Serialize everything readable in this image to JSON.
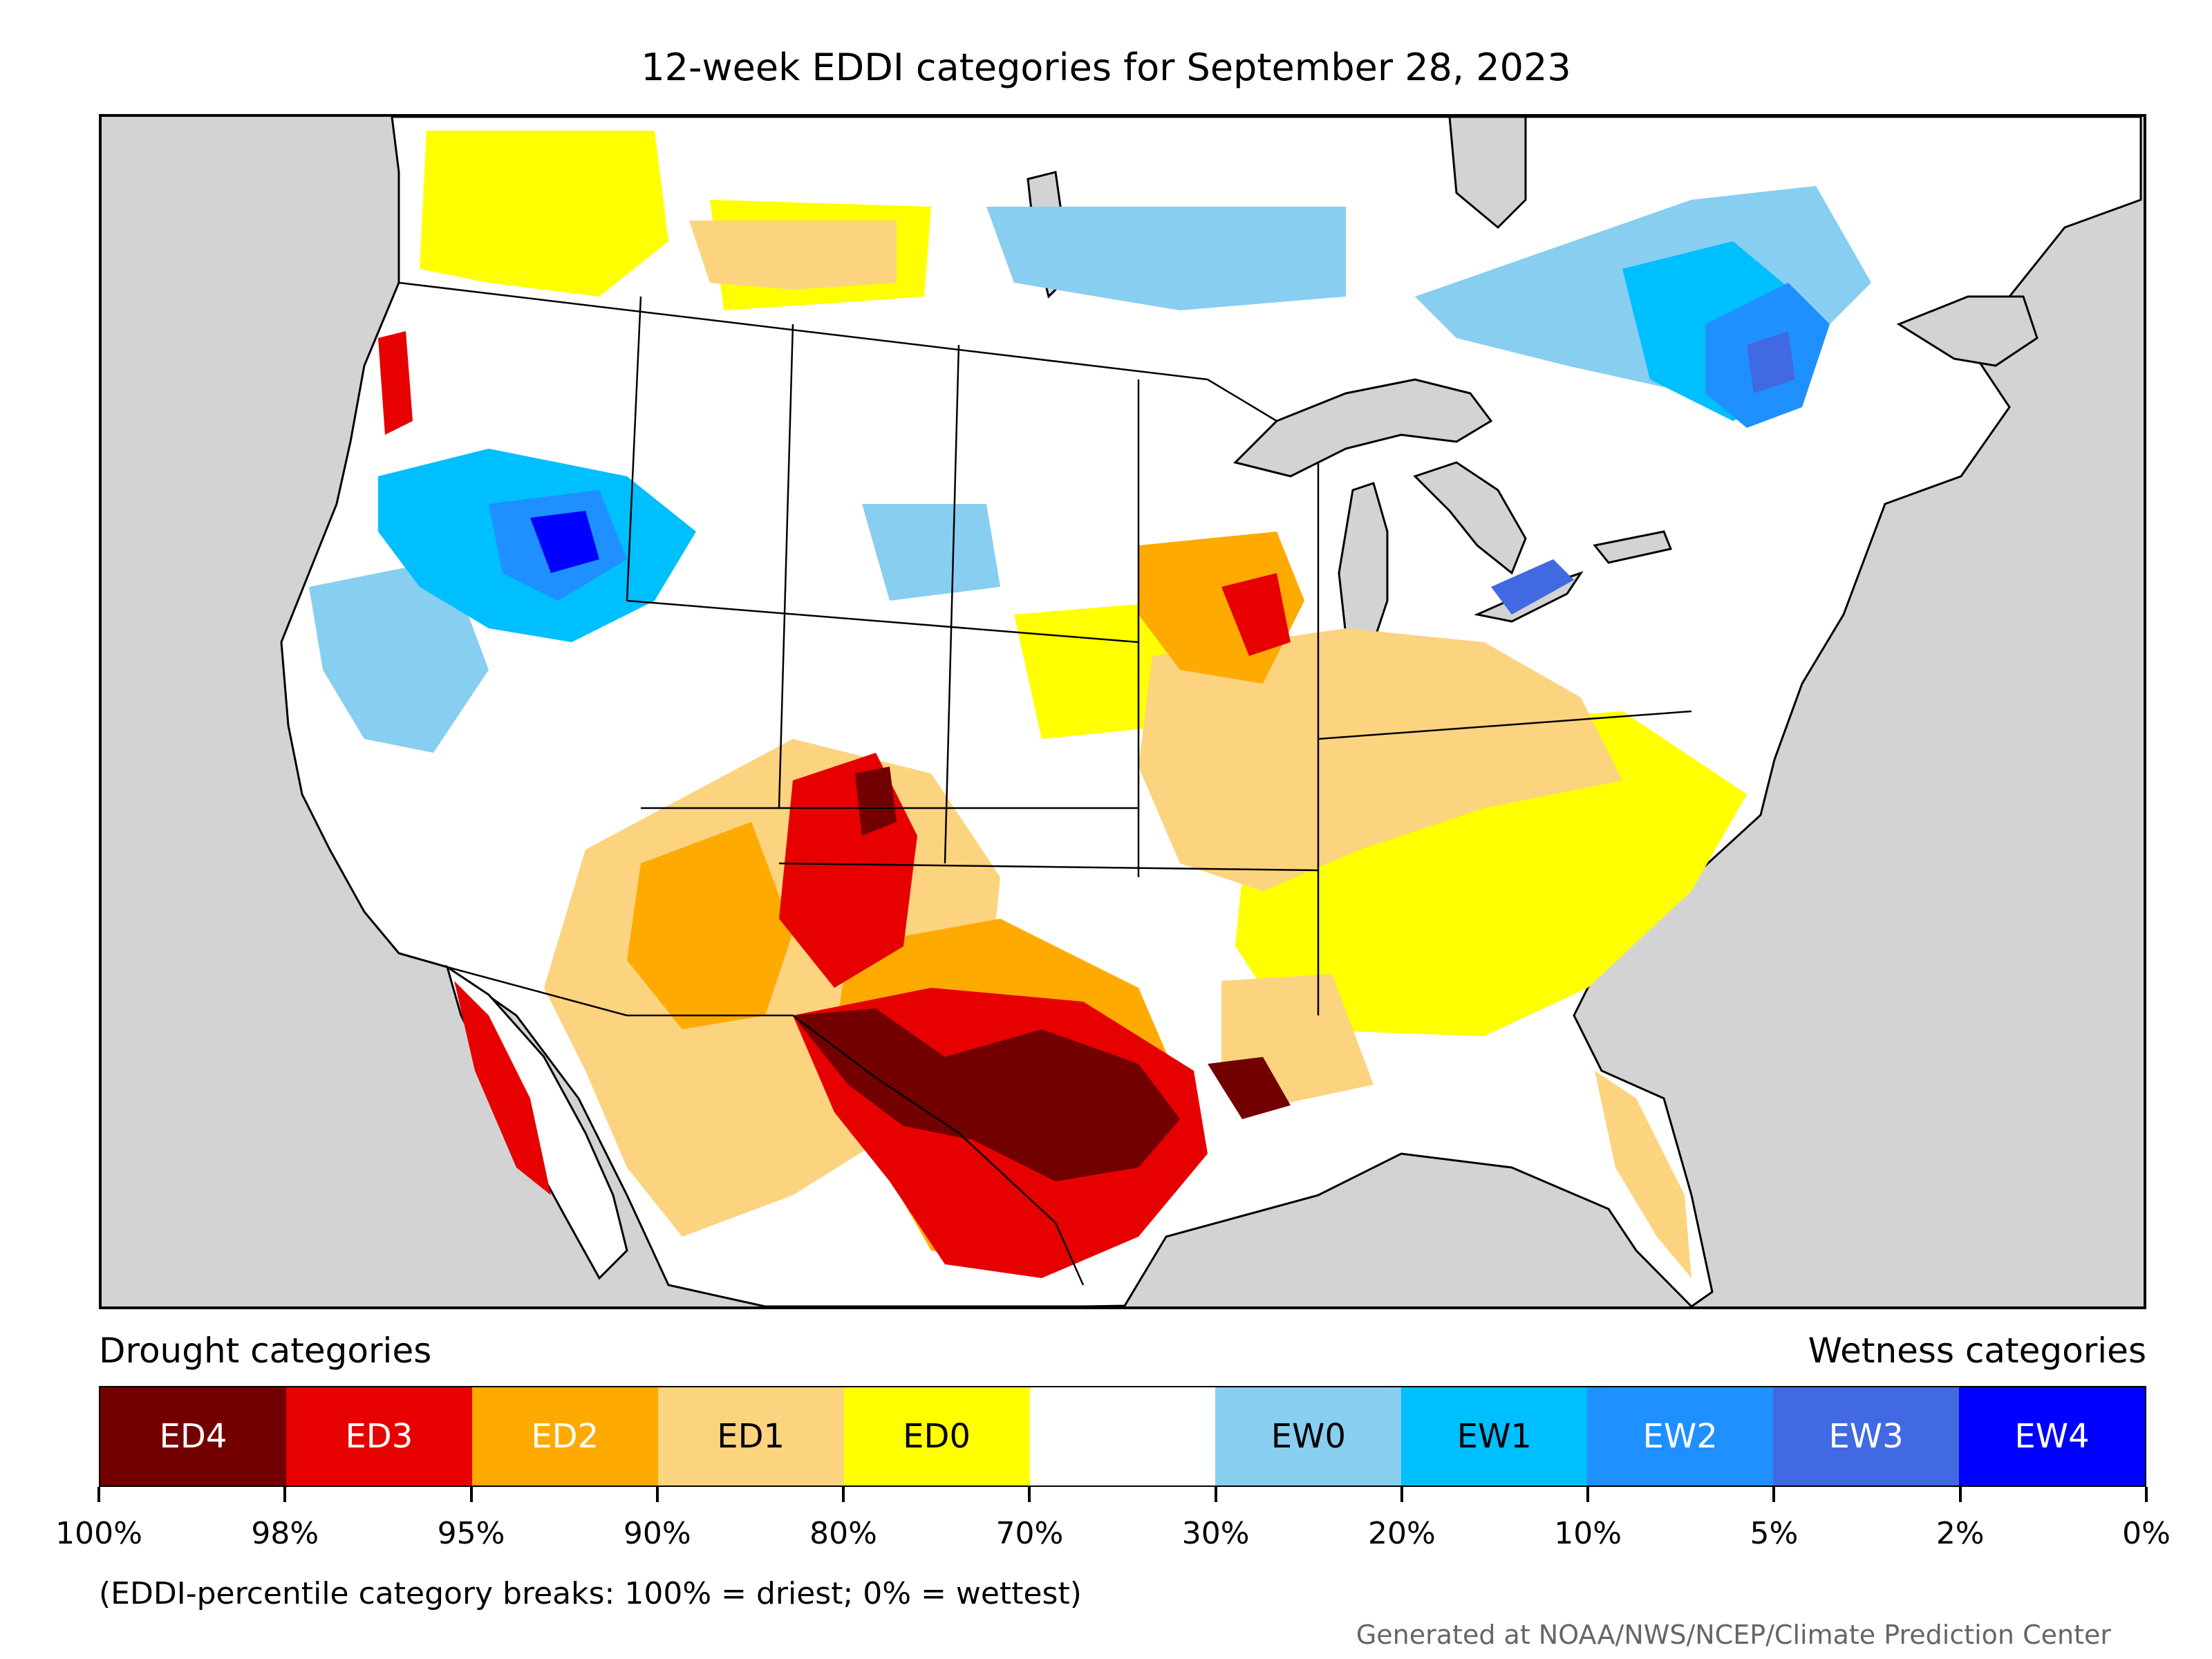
{
  "title": "12-week EDDI categories for September 28, 2023",
  "map": {
    "region": "Contiguous United States with southern Canada and northern Mexico",
    "background_color": "#d3d3d3",
    "regions": [
      {
        "area": "Texas and Rio Grande basin",
        "category": "ED4"
      },
      {
        "area": "Central and southern Texas",
        "category": "ED3"
      },
      {
        "area": "New Mexico and southern Colorado",
        "category": "ED3"
      },
      {
        "area": "Louisiana coast",
        "category": "ED4"
      },
      {
        "area": "Arizona and Southwest",
        "category": "ED1"
      },
      {
        "area": "Western Mexico coast",
        "category": "ED3"
      },
      {
        "area": "Iowa and Wisconsin",
        "category": "ED2"
      },
      {
        "area": "Illinois, Indiana, Ohio Valley",
        "category": "ED1"
      },
      {
        "area": "Southeast and Mid-Atlantic",
        "category": "ED0"
      },
      {
        "area": "Florida peninsula",
        "category": "ED1"
      },
      {
        "area": "Oregon coast",
        "category": "ED3"
      },
      {
        "area": "Southern Alberta and Saskatchewan",
        "category": "ED1"
      },
      {
        "area": "Idaho, northern Nevada, Utah",
        "category": "EW1"
      },
      {
        "area": "Southern Idaho core",
        "category": "EW4"
      },
      {
        "area": "Northern Minnesota and Ontario",
        "category": "EW0"
      },
      {
        "area": "Lower St. Lawrence and Quebec",
        "category": "EW2"
      },
      {
        "area": "Lake Erie and Lake Ontario shores",
        "category": "EW3"
      },
      {
        "area": "Northern Plains and Northeast interior",
        "category": "none"
      }
    ]
  },
  "legend": {
    "drought_heading": "Drought categories",
    "wetness_heading": "Wetness categories",
    "categories": [
      {
        "label": "ED4",
        "color": "#730000",
        "text_color": "#ffffff"
      },
      {
        "label": "ED3",
        "color": "#e60000",
        "text_color": "#ffffff"
      },
      {
        "label": "ED2",
        "color": "#ffaa00",
        "text_color": "#ffffff"
      },
      {
        "label": "ED1",
        "color": "#fcd37f",
        "text_color": "#000000"
      },
      {
        "label": "ED0",
        "color": "#ffff00",
        "text_color": "#000000"
      },
      {
        "label": "",
        "color": "#ffffff",
        "text_color": "#000000"
      },
      {
        "label": "EW0",
        "color": "#87cef0",
        "text_color": "#000000"
      },
      {
        "label": "EW1",
        "color": "#00bfff",
        "text_color": "#000000"
      },
      {
        "label": "EW2",
        "color": "#1e90ff",
        "text_color": "#ffffff"
      },
      {
        "label": "EW3",
        "color": "#4169e1",
        "text_color": "#ffffff"
      },
      {
        "label": "EW4",
        "color": "#0000ff",
        "text_color": "#ffffff"
      }
    ],
    "ticks": [
      "100%",
      "98%",
      "95%",
      "90%",
      "80%",
      "70%",
      "30%",
      "20%",
      "10%",
      "5%",
      "2%",
      "0%"
    ]
  },
  "footnote": "(EDDI-percentile category breaks: 100% = driest; 0% = wettest)",
  "credit": "Generated at NOAA/NWS/NCEP/Climate Prediction Center"
}
